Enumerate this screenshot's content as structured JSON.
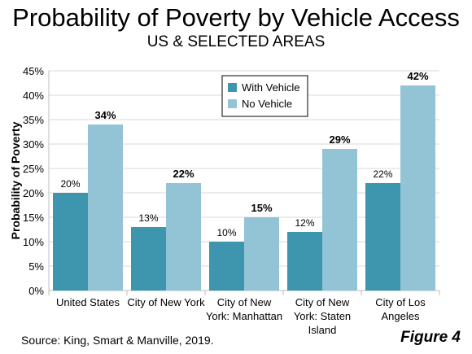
{
  "chart_data": {
    "type": "bar",
    "title": "Probability of Poverty by Vehicle Access",
    "subtitle": "US & SELECTED AREAS",
    "ylabel": "Probability of Poverty",
    "xlabel": "",
    "ylim": [
      0,
      45
    ],
    "yticks": [
      0,
      5,
      10,
      15,
      20,
      25,
      30,
      35,
      40,
      45
    ],
    "ytick_labels": [
      "0%",
      "5%",
      "10%",
      "15%",
      "20%",
      "25%",
      "30%",
      "35%",
      "40%",
      "45%"
    ],
    "categories": [
      [
        "United States"
      ],
      [
        "City of New York"
      ],
      [
        "City of New",
        "York: Manhattan"
      ],
      [
        "City of New",
        "York: Staten",
        "Island"
      ],
      [
        "City of Los",
        "Angeles"
      ]
    ],
    "series": [
      {
        "name": "With Vehicle",
        "color": "#3d96ad",
        "values": [
          20,
          13,
          10,
          12,
          22
        ],
        "labels": [
          "20%",
          "13%",
          "10%",
          "12%",
          "22%"
        ]
      },
      {
        "name": "No Vehicle",
        "color": "#93c4d5",
        "values": [
          34,
          22,
          15,
          29,
          42
        ],
        "labels": [
          "34%",
          "22%",
          "15%",
          "29%",
          "42%"
        ]
      }
    ],
    "legend_position": "top-center",
    "grid": true
  },
  "footer": {
    "source": "Source: King, Smart & Manville, 2019.",
    "figure": "Figure 4"
  }
}
